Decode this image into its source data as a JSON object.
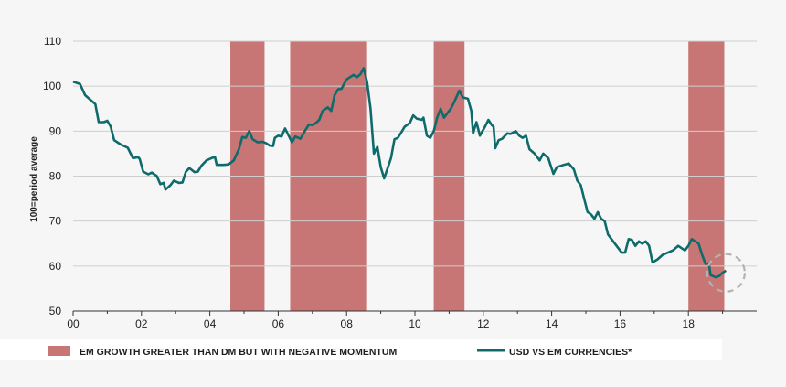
{
  "chart_data": {
    "type": "line",
    "xlabel": "",
    "ylabel": "100=period average",
    "ylim": [
      50,
      110
    ],
    "yticks": [
      50,
      60,
      70,
      80,
      90,
      100,
      110
    ],
    "xlim": [
      2000,
      2020
    ],
    "xticks": [
      {
        "value": 2000,
        "label": "00"
      },
      {
        "value": 2002,
        "label": "02"
      },
      {
        "value": 2004,
        "label": "04"
      },
      {
        "value": 2006,
        "label": "06"
      },
      {
        "value": 2008,
        "label": "08"
      },
      {
        "value": 2010,
        "label": "10"
      },
      {
        "value": 2012,
        "label": "12"
      },
      {
        "value": 2014,
        "label": "14"
      },
      {
        "value": 2016,
        "label": "16"
      },
      {
        "value": 2018,
        "label": "18"
      }
    ],
    "grid": "horizontal",
    "legend_position": "bottom",
    "shaded_periods": {
      "name": "EM GROWTH GREATER THAN DM BUT WITH NEGATIVE MOMENTUM",
      "color": "#c77675",
      "ranges": [
        [
          2004.6,
          2005.6
        ],
        [
          2006.35,
          2008.6
        ],
        [
          2010.55,
          2011.45
        ],
        [
          2018.0,
          2019.05
        ]
      ]
    },
    "series": [
      {
        "name": "USD VS  EM CURRENCIES*",
        "color": "#0f6b6b",
        "points": [
          [
            2000.0,
            101
          ],
          [
            2000.2,
            100.5
          ],
          [
            2000.35,
            98
          ],
          [
            2000.5,
            97
          ],
          [
            2000.65,
            96
          ],
          [
            2000.75,
            92
          ],
          [
            2000.9,
            92
          ],
          [
            2001.0,
            92.3
          ],
          [
            2001.1,
            91
          ],
          [
            2001.2,
            88
          ],
          [
            2001.4,
            87
          ],
          [
            2001.6,
            86.3
          ],
          [
            2001.75,
            84
          ],
          [
            2001.9,
            84.2
          ],
          [
            2001.95,
            83.8
          ],
          [
            2002.05,
            81
          ],
          [
            2002.2,
            80.4
          ],
          [
            2002.3,
            80.8
          ],
          [
            2002.45,
            80
          ],
          [
            2002.55,
            78.2
          ],
          [
            2002.65,
            78.5
          ],
          [
            2002.7,
            77
          ],
          [
            2002.85,
            78
          ],
          [
            2002.95,
            79
          ],
          [
            2003.1,
            78.5
          ],
          [
            2003.2,
            78.6
          ],
          [
            2003.3,
            81
          ],
          [
            2003.4,
            81.8
          ],
          [
            2003.55,
            80.9
          ],
          [
            2003.65,
            81
          ],
          [
            2003.75,
            82.3
          ],
          [
            2003.9,
            83.5
          ],
          [
            2004.05,
            84
          ],
          [
            2004.15,
            84.2
          ],
          [
            2004.2,
            82.5
          ],
          [
            2004.4,
            82.5
          ],
          [
            2004.55,
            82.6
          ],
          [
            2004.7,
            83.5
          ],
          [
            2004.85,
            86
          ],
          [
            2004.95,
            88.7
          ],
          [
            2005.05,
            88.5
          ],
          [
            2005.15,
            90
          ],
          [
            2005.25,
            88.2
          ],
          [
            2005.4,
            87.5
          ],
          [
            2005.55,
            87.6
          ],
          [
            2005.65,
            87.3
          ],
          [
            2005.75,
            86.8
          ],
          [
            2005.85,
            86.7
          ],
          [
            2005.9,
            88.5
          ],
          [
            2006.0,
            89
          ],
          [
            2006.1,
            88.8
          ],
          [
            2006.2,
            90.6
          ],
          [
            2006.3,
            89.1
          ],
          [
            2006.4,
            87.5
          ],
          [
            2006.5,
            88.8
          ],
          [
            2006.65,
            88.3
          ],
          [
            2006.8,
            90.3
          ],
          [
            2006.9,
            91.5
          ],
          [
            2007.0,
            91.3
          ],
          [
            2007.1,
            91.8
          ],
          [
            2007.2,
            92.5
          ],
          [
            2007.3,
            94.5
          ],
          [
            2007.45,
            95.3
          ],
          [
            2007.55,
            94.5
          ],
          [
            2007.65,
            98
          ],
          [
            2007.75,
            99.3
          ],
          [
            2007.85,
            99.4
          ],
          [
            2008.0,
            101.5
          ],
          [
            2008.1,
            102
          ],
          [
            2008.2,
            102.5
          ],
          [
            2008.3,
            102
          ],
          [
            2008.4,
            102.6
          ],
          [
            2008.5,
            104
          ],
          [
            2008.6,
            101
          ],
          [
            2008.7,
            95
          ],
          [
            2008.8,
            85
          ],
          [
            2008.9,
            86.5
          ],
          [
            2009.0,
            82
          ],
          [
            2009.1,
            79.5
          ],
          [
            2009.3,
            84
          ],
          [
            2009.4,
            88.2
          ],
          [
            2009.5,
            88.5
          ],
          [
            2009.6,
            89.7
          ],
          [
            2009.7,
            91
          ],
          [
            2009.85,
            91.8
          ],
          [
            2009.95,
            93.5
          ],
          [
            2010.05,
            92.8
          ],
          [
            2010.2,
            92.5
          ],
          [
            2010.25,
            93
          ],
          [
            2010.35,
            89
          ],
          [
            2010.45,
            88.5
          ],
          [
            2010.55,
            90
          ],
          [
            2010.65,
            93
          ],
          [
            2010.75,
            95
          ],
          [
            2010.85,
            93
          ],
          [
            2010.95,
            94
          ],
          [
            2011.05,
            95
          ],
          [
            2011.15,
            96.5
          ],
          [
            2011.3,
            99
          ],
          [
            2011.4,
            97.5
          ],
          [
            2011.55,
            97.2
          ],
          [
            2011.65,
            94.5
          ],
          [
            2011.7,
            89.5
          ],
          [
            2011.8,
            92
          ],
          [
            2011.9,
            89
          ],
          [
            2012.05,
            91
          ],
          [
            2012.15,
            92.5
          ],
          [
            2012.25,
            91.3
          ],
          [
            2012.3,
            91
          ],
          [
            2012.35,
            86.2
          ],
          [
            2012.45,
            88
          ],
          [
            2012.55,
            88.3
          ],
          [
            2012.7,
            89.5
          ],
          [
            2012.8,
            89.4
          ],
          [
            2012.95,
            90
          ],
          [
            2013.05,
            89
          ],
          [
            2013.15,
            88.5
          ],
          [
            2013.25,
            89
          ],
          [
            2013.35,
            86
          ],
          [
            2013.5,
            85
          ],
          [
            2013.65,
            83.5
          ],
          [
            2013.75,
            85
          ],
          [
            2013.9,
            84
          ],
          [
            2014.05,
            80.5
          ],
          [
            2014.15,
            82
          ],
          [
            2014.35,
            82.5
          ],
          [
            2014.5,
            82.8
          ],
          [
            2014.65,
            81.5
          ],
          [
            2014.75,
            79
          ],
          [
            2014.85,
            78
          ],
          [
            2014.95,
            75
          ],
          [
            2015.05,
            72
          ],
          [
            2015.15,
            71.5
          ],
          [
            2015.25,
            70.5
          ],
          [
            2015.35,
            72
          ],
          [
            2015.45,
            70.5
          ],
          [
            2015.55,
            70
          ],
          [
            2015.65,
            67
          ],
          [
            2015.75,
            66
          ],
          [
            2015.85,
            65
          ],
          [
            2015.95,
            64
          ],
          [
            2016.05,
            63
          ],
          [
            2016.15,
            63
          ],
          [
            2016.25,
            66
          ],
          [
            2016.35,
            65.8
          ],
          [
            2016.45,
            64.5
          ],
          [
            2016.55,
            65.5
          ],
          [
            2016.65,
            65
          ],
          [
            2016.75,
            65.5
          ],
          [
            2016.85,
            64.5
          ],
          [
            2016.95,
            60.8
          ],
          [
            2017.1,
            61.5
          ],
          [
            2017.25,
            62.5
          ],
          [
            2017.4,
            63
          ],
          [
            2017.55,
            63.5
          ],
          [
            2017.7,
            64.5
          ],
          [
            2017.8,
            64
          ],
          [
            2017.9,
            63.5
          ],
          [
            2018.0,
            64.5
          ],
          [
            2018.1,
            66
          ],
          [
            2018.2,
            65.5
          ],
          [
            2018.3,
            65
          ],
          [
            2018.4,
            62.5
          ],
          [
            2018.5,
            60.5
          ],
          [
            2018.6,
            60.6
          ],
          [
            2018.65,
            58
          ],
          [
            2018.8,
            57.5
          ],
          [
            2018.9,
            57.8
          ],
          [
            2019.0,
            58.5
          ],
          [
            2019.1,
            59
          ]
        ]
      }
    ],
    "annotation": {
      "type": "dashed-circle",
      "center": [
        2019.1,
        58.5
      ],
      "radius_years": 0.55,
      "color": "#b3b3b3"
    }
  }
}
